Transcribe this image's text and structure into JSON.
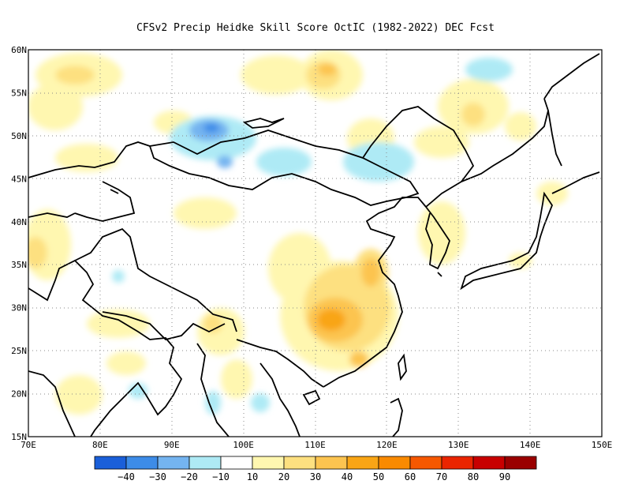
{
  "title": "CFSv2 Precip Heidke Skill Score OctIC (1982-2022) DEC Fcst",
  "map": {
    "lon_range": [
      70,
      150
    ],
    "lat_range": [
      15,
      60
    ],
    "lon_ticks": [
      "70E",
      "80E",
      "90E",
      "100E",
      "110E",
      "120E",
      "130E",
      "140E",
      "150E"
    ],
    "lat_ticks": [
      "15N",
      "20N",
      "25N",
      "30N",
      "35N",
      "40N",
      "45N",
      "50N",
      "55N",
      "60N"
    ],
    "grid_lines": "dotted"
  },
  "colorbar": {
    "colors": [
      "#1a5fd9",
      "#3d8ce8",
      "#74b4f0",
      "#aeeaf5",
      "#ffffff",
      "#fff7b0",
      "#fde080",
      "#fcc450",
      "#f9a515",
      "#f98a00",
      "#f65800",
      "#ea2500",
      "#c80000",
      "#9a0000"
    ],
    "labels": [
      "-40",
      "-30",
      "-20",
      "-10",
      "10",
      "20",
      "30",
      "40",
      "50",
      "60",
      "70",
      "80",
      "90"
    ]
  }
}
